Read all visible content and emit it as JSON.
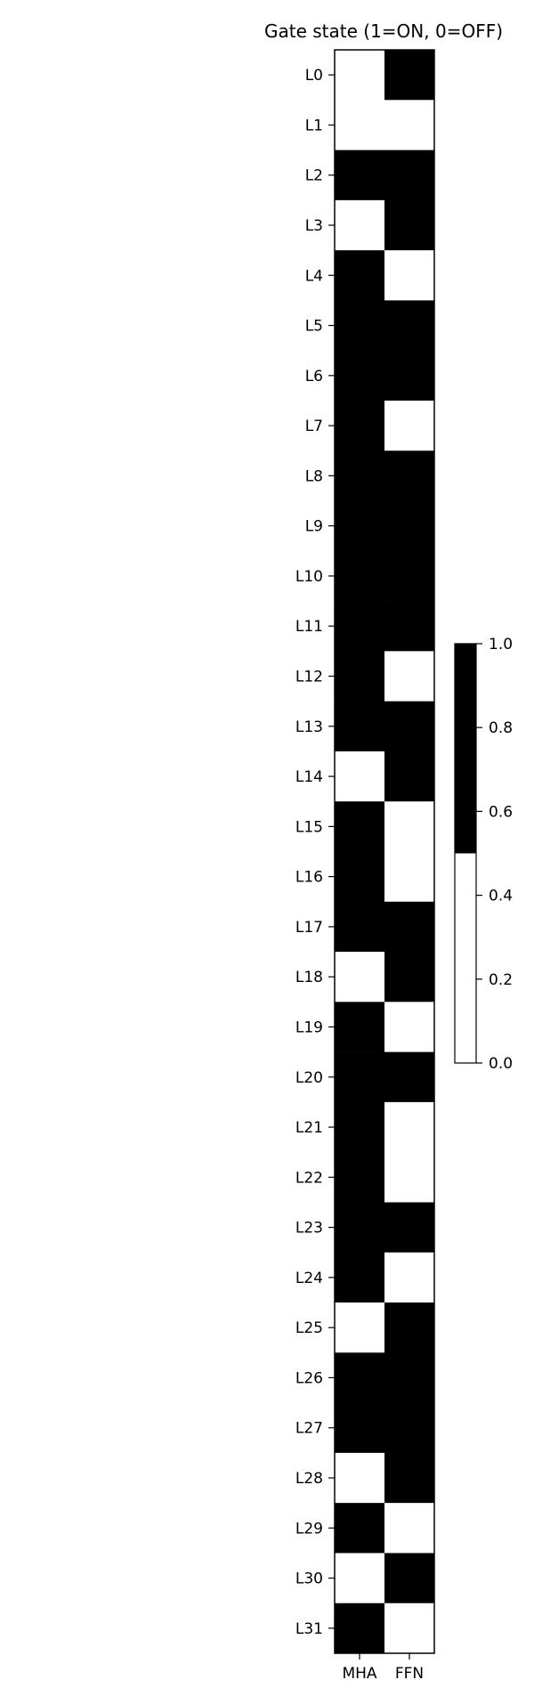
{
  "chart_data": {
    "type": "heatmap",
    "title": "Gate state (1=ON, 0=OFF)",
    "x_categories": [
      "MHA",
      "FFN"
    ],
    "y_categories": [
      "L0",
      "L1",
      "L2",
      "L3",
      "L4",
      "L5",
      "L6",
      "L7",
      "L8",
      "L9",
      "L10",
      "L11",
      "L12",
      "L13",
      "L14",
      "L15",
      "L16",
      "L17",
      "L18",
      "L19",
      "L20",
      "L21",
      "L22",
      "L23",
      "L24",
      "L25",
      "L26",
      "L27",
      "L28",
      "L29",
      "L30",
      "L31"
    ],
    "values": [
      [
        0,
        1
      ],
      [
        0,
        0
      ],
      [
        1,
        1
      ],
      [
        0,
        1
      ],
      [
        1,
        0
      ],
      [
        1,
        1
      ],
      [
        1,
        1
      ],
      [
        1,
        0
      ],
      [
        1,
        1
      ],
      [
        1,
        1
      ],
      [
        1,
        1
      ],
      [
        1,
        1
      ],
      [
        1,
        0
      ],
      [
        1,
        1
      ],
      [
        0,
        1
      ],
      [
        1,
        0
      ],
      [
        1,
        0
      ],
      [
        1,
        1
      ],
      [
        0,
        1
      ],
      [
        1,
        0
      ],
      [
        1,
        1
      ],
      [
        1,
        0
      ],
      [
        1,
        0
      ],
      [
        1,
        1
      ],
      [
        1,
        0
      ],
      [
        0,
        1
      ],
      [
        1,
        1
      ],
      [
        1,
        1
      ],
      [
        0,
        1
      ],
      [
        1,
        0
      ],
      [
        0,
        1
      ],
      [
        1,
        0
      ]
    ],
    "colormap": {
      "0": "#ffffff",
      "1": "#000000"
    },
    "colorbar": {
      "range": [
        0.0,
        1.0
      ],
      "ticks": [
        "0.0",
        "0.2",
        "0.4",
        "0.6",
        "0.8",
        "1.0"
      ]
    }
  }
}
